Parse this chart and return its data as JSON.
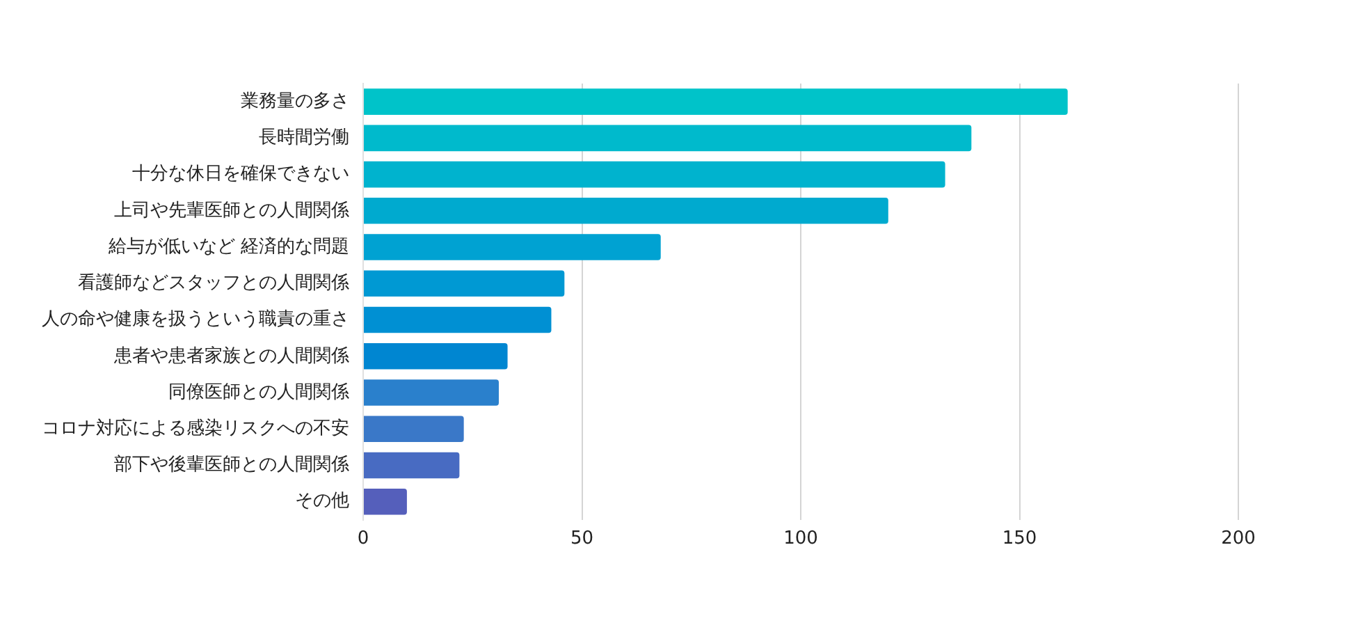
{
  "chart_data": {
    "type": "bar",
    "orientation": "horizontal",
    "categories": [
      "業務量の多さ",
      "長時間労働",
      "十分な休日を確保できない",
      "上司や先輩医師との人間関係",
      "給与が低いなど 経済的な問題",
      "看護師などスタッフとの人間関係",
      "人の命や健康を扱うという職責の重さ",
      "患者や患者家族との人間関係",
      "同僚医師との人間関係",
      "コロナ対応による感染リスクへの不安",
      "部下や後輩医師との人間関係",
      "その他"
    ],
    "values": [
      161,
      139,
      133,
      120,
      68,
      46,
      43,
      33,
      31,
      23,
      22,
      10
    ],
    "colors": [
      "#00c3c9",
      "#00bacc",
      "#00b3ce",
      "#00aacf",
      "#00a2d2",
      "#0099d3",
      "#0090d3",
      "#0086d1",
      "#2a80cc",
      "#3a78c8",
      "#486bc2",
      "#555fbb"
    ],
    "xlim": [
      0,
      200
    ],
    "xticks": [
      0,
      50,
      100,
      150,
      200
    ],
    "grid": "x",
    "legend": false
  }
}
